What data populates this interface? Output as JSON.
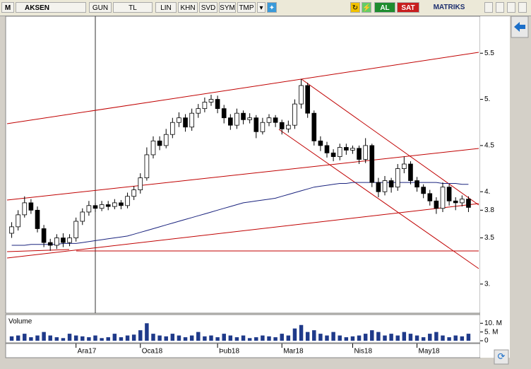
{
  "toolbar": {
    "logo": "M",
    "symbol": "AKSEN",
    "buttons": [
      "GUN",
      "TL",
      "LIN",
      "KHN",
      "SVD",
      "SYM",
      "TMP"
    ],
    "buy": "AL",
    "sell": "SAT",
    "brand": "MATRIKS"
  },
  "chart_data": [
    {
      "type": "candlestick",
      "up_color": "#ffffff",
      "down_color": "#000000",
      "categories": [
        null,
        null,
        null,
        null,
        null,
        null,
        null,
        null,
        null,
        null,
        "Ara17",
        null,
        null,
        null,
        null,
        null,
        null,
        null,
        null,
        null,
        "Oca18",
        null,
        null,
        null,
        null,
        null,
        null,
        null,
        null,
        null,
        null,
        null,
        "Þub18",
        null,
        null,
        null,
        null,
        null,
        null,
        null,
        null,
        null,
        "Mar18",
        null,
        null,
        null,
        null,
        null,
        null,
        null,
        null,
        null,
        null,
        "Nis18",
        null,
        null,
        null,
        null,
        null,
        null,
        null,
        null,
        null,
        "May18",
        null,
        null,
        null,
        null,
        null,
        null,
        null,
        null
      ],
      "open": [
        3.55,
        3.62,
        3.75,
        3.88,
        3.8,
        3.6,
        3.45,
        3.42,
        3.5,
        3.45,
        3.5,
        3.68,
        3.78,
        3.85,
        3.82,
        3.86,
        3.84,
        3.88,
        3.85,
        3.95,
        4.02,
        4.15,
        4.4,
        4.55,
        4.5,
        4.62,
        4.75,
        4.8,
        4.7,
        4.85,
        4.9,
        4.97,
        5.0,
        4.9,
        4.8,
        4.72,
        4.85,
        4.78,
        4.8,
        4.65,
        4.75,
        4.8,
        4.75,
        4.68,
        4.72,
        4.95,
        5.15,
        4.85,
        4.55,
        4.5,
        4.42,
        4.38,
        4.48,
        4.45,
        4.47,
        4.35,
        4.5,
        4.1,
        4.0,
        4.12,
        4.05,
        4.25,
        4.3,
        4.12,
        4.05,
        3.98,
        3.9,
        3.82,
        4.05,
        3.9,
        3.88,
        3.92
      ],
      "high": [
        3.67,
        3.8,
        3.95,
        3.92,
        3.84,
        3.64,
        3.49,
        3.54,
        3.55,
        3.54,
        3.72,
        3.82,
        3.9,
        3.88,
        3.9,
        3.9,
        3.92,
        3.91,
        3.99,
        4.06,
        4.2,
        4.48,
        4.6,
        4.6,
        4.68,
        4.8,
        4.86,
        4.84,
        4.9,
        4.95,
        5.02,
        5.05,
        5.04,
        4.94,
        4.84,
        4.9,
        4.88,
        4.85,
        4.83,
        4.8,
        4.84,
        4.83,
        4.78,
        4.77,
        5.0,
        5.22,
        5.18,
        4.88,
        4.6,
        4.54,
        4.46,
        4.52,
        4.52,
        4.5,
        4.5,
        4.58,
        4.52,
        4.15,
        4.17,
        4.15,
        4.3,
        4.38,
        4.33,
        4.16,
        4.08,
        4.02,
        3.94,
        4.1,
        4.08,
        3.94,
        3.96,
        3.95
      ],
      "low": [
        3.5,
        3.58,
        3.72,
        3.76,
        3.56,
        3.4,
        3.36,
        3.38,
        3.4,
        3.41,
        3.46,
        3.64,
        3.74,
        3.78,
        3.79,
        3.8,
        3.81,
        3.81,
        3.82,
        3.91,
        3.98,
        4.12,
        4.36,
        4.45,
        4.47,
        4.58,
        4.7,
        4.65,
        4.66,
        4.8,
        4.86,
        4.93,
        4.85,
        4.74,
        4.67,
        4.68,
        4.73,
        4.74,
        4.58,
        4.62,
        4.71,
        4.7,
        4.62,
        4.64,
        4.68,
        4.9,
        4.8,
        4.5,
        4.44,
        4.37,
        4.33,
        4.34,
        4.4,
        4.41,
        4.3,
        4.31,
        4.05,
        3.94,
        3.96,
        3.99,
        4.01,
        4.2,
        4.08,
        4.0,
        3.93,
        3.85,
        3.76,
        3.78,
        3.85,
        3.8,
        3.84,
        3.78
      ],
      "close": [
        3.62,
        3.75,
        3.88,
        3.8,
        3.6,
        3.45,
        3.42,
        3.5,
        3.45,
        3.5,
        3.68,
        3.78,
        3.85,
        3.82,
        3.86,
        3.84,
        3.88,
        3.85,
        3.95,
        4.02,
        4.15,
        4.4,
        4.55,
        4.5,
        4.62,
        4.75,
        4.8,
        4.7,
        4.85,
        4.9,
        4.97,
        5.0,
        4.9,
        4.8,
        4.72,
        4.85,
        4.78,
        4.8,
        4.65,
        4.75,
        4.8,
        4.75,
        4.68,
        4.72,
        4.95,
        5.15,
        4.85,
        4.55,
        4.5,
        4.42,
        4.38,
        4.48,
        4.45,
        4.47,
        4.35,
        4.5,
        4.1,
        4.0,
        4.12,
        4.05,
        4.25,
        4.3,
        4.12,
        4.05,
        3.98,
        3.9,
        3.82,
        4.05,
        3.9,
        3.88,
        3.92,
        3.83
      ],
      "overlay": {
        "color": "#1a237e",
        "values": [
          3.42,
          3.42,
          3.42,
          3.43,
          3.43,
          3.43,
          3.43,
          3.43,
          3.44,
          3.44,
          3.44,
          3.45,
          3.46,
          3.47,
          3.48,
          3.49,
          3.5,
          3.51,
          3.52,
          3.54,
          3.56,
          3.58,
          3.6,
          3.62,
          3.64,
          3.66,
          3.68,
          3.7,
          3.72,
          3.74,
          3.76,
          3.78,
          3.8,
          3.82,
          3.84,
          3.86,
          3.88,
          3.89,
          3.9,
          3.91,
          3.92,
          3.93,
          3.95,
          3.97,
          3.99,
          4.01,
          4.03,
          4.05,
          4.06,
          4.07,
          4.08,
          4.09,
          4.09,
          4.1,
          4.1,
          4.1,
          4.1,
          4.1,
          4.1,
          4.1,
          4.1,
          4.1,
          4.1,
          4.1,
          4.1,
          4.1,
          4.1,
          4.09,
          4.09,
          4.09,
          4.08,
          4.08
        ]
      },
      "ylim": [
        2.685,
        5.9
      ],
      "yticks": [
        {
          "value": 3,
          "label": "3."
        },
        3.5,
        3.8,
        {
          "value": 4,
          "label": "4."
        },
        4.5,
        {
          "value": 5,
          "label": "5."
        },
        5.5
      ]
    },
    {
      "type": "bar",
      "title": "Volume",
      "color": "#1f3a8a",
      "values": [
        2.5,
        3,
        4,
        2,
        3,
        5,
        3,
        2,
        1.5,
        4,
        3,
        2.5,
        2,
        3,
        1.5,
        2,
        4,
        2,
        3,
        3.5,
        6,
        10,
        4,
        3,
        2.5,
        4,
        3,
        2,
        3,
        5,
        2.5,
        3,
        2,
        4,
        3,
        2,
        3,
        1.5,
        2,
        3,
        2.5,
        2,
        4,
        3,
        7,
        9,
        5,
        6,
        4,
        3,
        5,
        3,
        2,
        2.5,
        3,
        4,
        6,
        5,
        3,
        4,
        3,
        5,
        4,
        3,
        2,
        4,
        5,
        3,
        2,
        3,
        2.5,
        4
      ],
      "ylim": [
        0,
        13.75
      ],
      "yticks": [
        0,
        {
          "value": 5,
          "label": "5. M"
        },
        {
          "value": 10,
          "label": "10. M"
        }
      ]
    }
  ]
}
